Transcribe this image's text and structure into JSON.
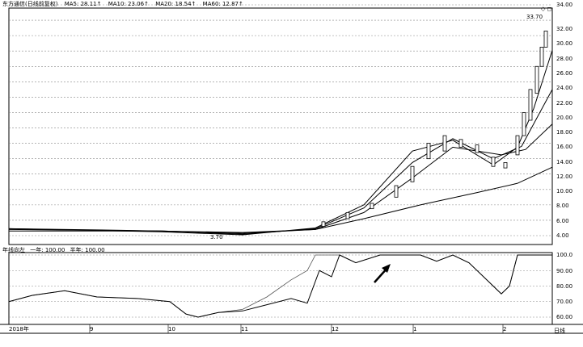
{
  "upper_legend": {
    "title": "东方通信(日线前复权)",
    "items": [
      "MA5: 28.11↑",
      "MA10: 23.06↑",
      "MA20: 18.54↑",
      "MA60: 12.87↑"
    ]
  },
  "lower_legend": {
    "title": "年线向左",
    "items": [
      "一年: 100.00",
      "半年: 100.00"
    ]
  },
  "price_axis": [
    "34.00",
    "32.00",
    "30.00",
    "28.00",
    "26.00",
    "24.00",
    "22.00",
    "20.00",
    "18.00",
    "16.00",
    "14.00",
    "12.00",
    "10.00",
    "8.00",
    "6.00",
    "4.00"
  ],
  "indicator_axis": [
    "100.0",
    "90.00",
    "80.00",
    "70.00",
    "60.00"
  ],
  "x_axis": [
    "2018年",
    "9",
    "10",
    "11",
    "12",
    "1",
    "2"
  ],
  "peak_label": "33.70",
  "low_label": "3.70",
  "period_label": "日线",
  "top_right_icons": "◇ ◻",
  "colors": {
    "line": "#000000",
    "grid": "#888888",
    "background": "#ffffff"
  }
}
